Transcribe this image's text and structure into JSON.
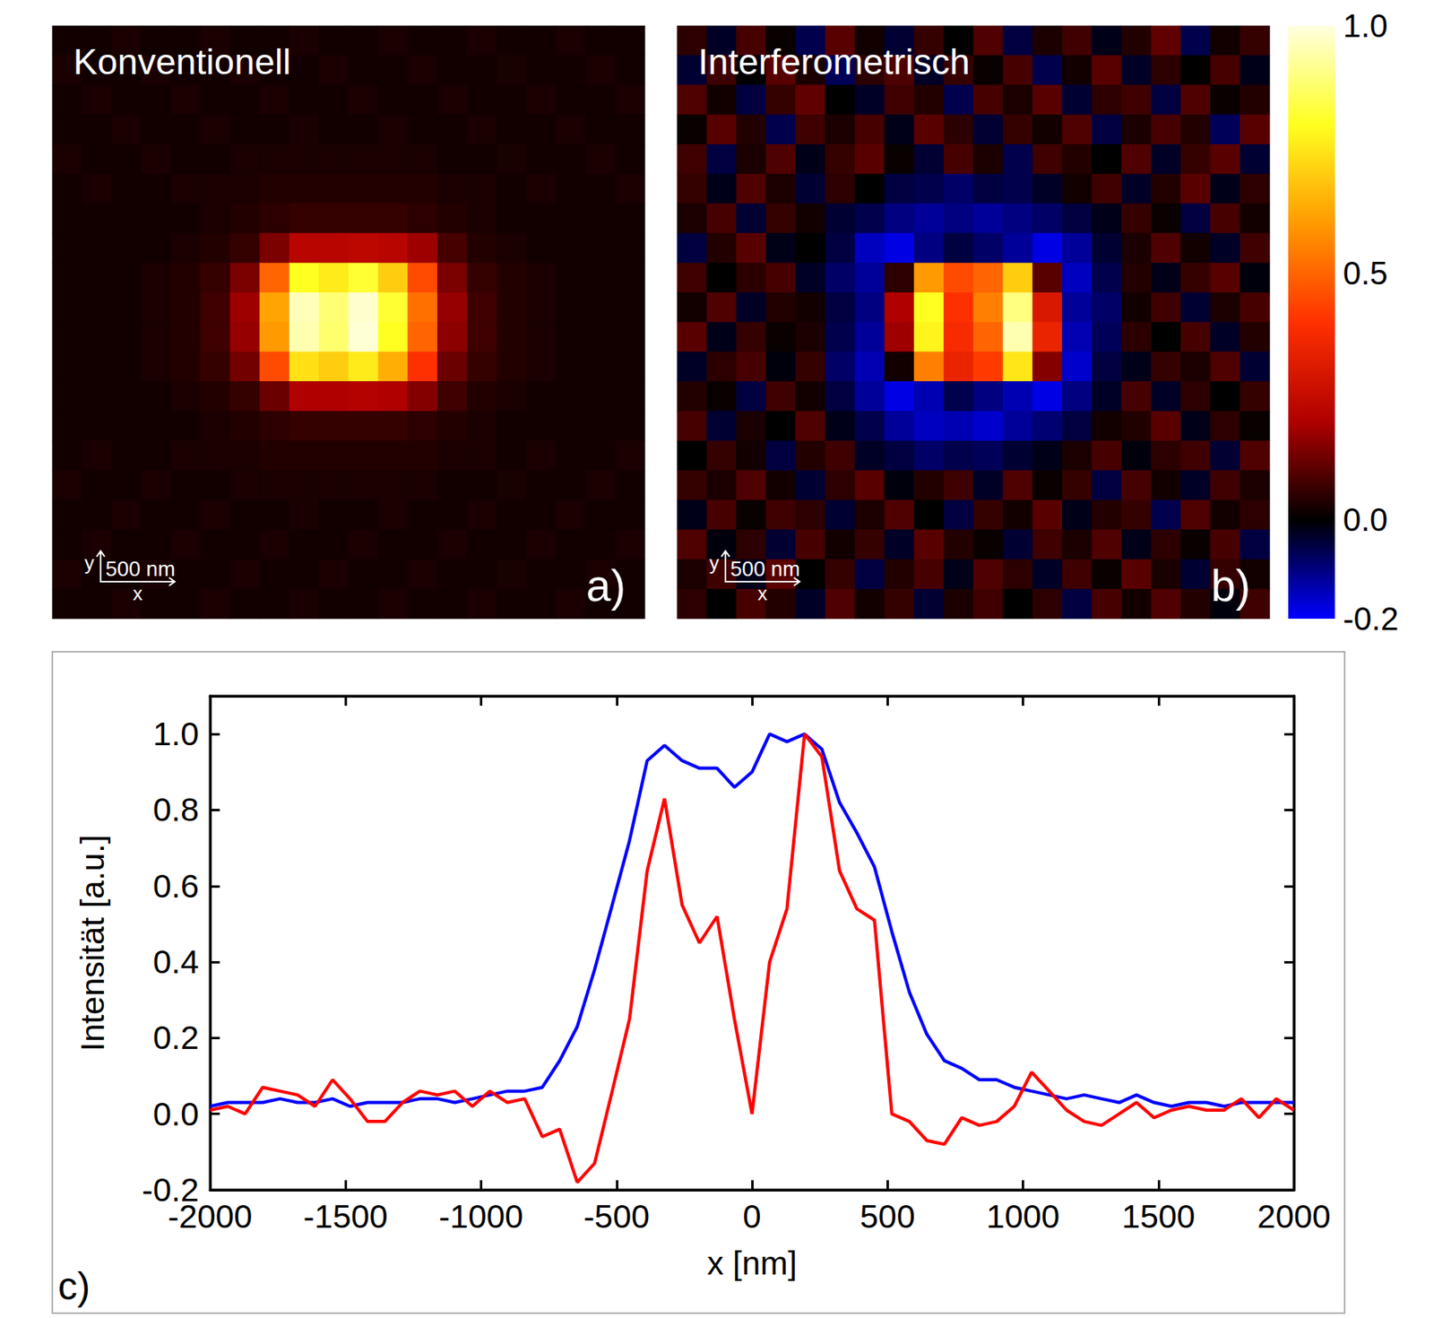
{
  "chart_data": [
    {
      "type": "heatmap",
      "title": "Konventionell",
      "label": "a)",
      "xlabel": "x",
      "ylabel": "y",
      "tick_labels": false,
      "xlim": [
        -2000,
        2000
      ],
      "ylim": [
        -2000,
        2000
      ],
      "scale_bar": {
        "length": 500,
        "label": "500 nm"
      },
      "x": [
        -1900,
        -1700,
        -1500,
        -1300,
        -1100,
        -900,
        -700,
        -500,
        -300,
        -100,
        100,
        300,
        500,
        700,
        900,
        1100,
        1300,
        1500,
        1700,
        1900
      ],
      "y": [
        1900,
        1700,
        1500,
        1300,
        1100,
        900,
        700,
        500,
        300,
        100,
        -100,
        -300,
        -500,
        -700,
        -900,
        -1100,
        -1300,
        -1500,
        -1700,
        -1900
      ],
      "cells": [
        [
          0.02,
          0.02,
          0.03,
          0.02,
          0.02,
          0.03,
          0.02,
          0.02,
          0.03,
          0.02,
          0.02,
          0.03,
          0.02,
          0.02,
          0.03,
          0.02,
          0.02,
          0.03,
          0.02,
          0.02
        ],
        [
          0.03,
          0.02,
          0.02,
          0.03,
          0.02,
          0.02,
          0.03,
          0.02,
          0.02,
          0.03,
          0.02,
          0.02,
          0.03,
          0.02,
          0.02,
          0.03,
          0.02,
          0.02,
          0.03,
          0.02
        ],
        [
          0.02,
          0.03,
          0.02,
          0.02,
          0.03,
          0.02,
          0.02,
          0.03,
          0.02,
          0.02,
          0.03,
          0.02,
          0.02,
          0.03,
          0.02,
          0.02,
          0.03,
          0.02,
          0.02,
          0.03
        ],
        [
          0.02,
          0.02,
          0.03,
          0.02,
          0.02,
          0.03,
          0.02,
          0.02,
          0.03,
          0.02,
          0.02,
          0.03,
          0.02,
          0.02,
          0.03,
          0.02,
          0.02,
          0.03,
          0.02,
          0.02
        ],
        [
          0.03,
          0.02,
          0.02,
          0.03,
          0.02,
          0.02,
          0.03,
          0.03,
          0.03,
          0.03,
          0.03,
          0.03,
          0.03,
          0.02,
          0.02,
          0.03,
          0.02,
          0.02,
          0.03,
          0.02
        ],
        [
          0.02,
          0.03,
          0.02,
          0.02,
          0.03,
          0.03,
          0.03,
          0.04,
          0.04,
          0.04,
          0.04,
          0.04,
          0.04,
          0.03,
          0.03,
          0.02,
          0.03,
          0.02,
          0.02,
          0.03
        ],
        [
          0.02,
          0.02,
          0.02,
          0.02,
          0.02,
          0.03,
          0.04,
          0.05,
          0.06,
          0.06,
          0.06,
          0.06,
          0.05,
          0.04,
          0.03,
          0.02,
          0.02,
          0.02,
          0.02,
          0.02
        ],
        [
          0.02,
          0.02,
          0.02,
          0.02,
          0.03,
          0.04,
          0.06,
          0.14,
          0.22,
          0.22,
          0.23,
          0.22,
          0.18,
          0.08,
          0.04,
          0.03,
          0.02,
          0.02,
          0.02,
          0.02
        ],
        [
          0.02,
          0.02,
          0.02,
          0.03,
          0.04,
          0.06,
          0.14,
          0.5,
          0.8,
          0.76,
          0.82,
          0.7,
          0.45,
          0.14,
          0.06,
          0.04,
          0.03,
          0.02,
          0.02,
          0.02
        ],
        [
          0.02,
          0.02,
          0.02,
          0.03,
          0.04,
          0.07,
          0.18,
          0.62,
          0.96,
          0.89,
          0.98,
          0.82,
          0.52,
          0.17,
          0.07,
          0.04,
          0.03,
          0.02,
          0.02,
          0.02
        ],
        [
          0.02,
          0.02,
          0.02,
          0.03,
          0.04,
          0.07,
          0.17,
          0.6,
          0.95,
          0.88,
          0.99,
          0.8,
          0.5,
          0.16,
          0.07,
          0.04,
          0.03,
          0.02,
          0.02,
          0.02
        ],
        [
          0.02,
          0.02,
          0.02,
          0.03,
          0.04,
          0.06,
          0.13,
          0.45,
          0.74,
          0.7,
          0.76,
          0.64,
          0.4,
          0.12,
          0.06,
          0.04,
          0.03,
          0.02,
          0.02,
          0.02
        ],
        [
          0.02,
          0.02,
          0.02,
          0.02,
          0.03,
          0.04,
          0.06,
          0.12,
          0.2,
          0.2,
          0.21,
          0.2,
          0.15,
          0.07,
          0.04,
          0.03,
          0.02,
          0.02,
          0.02,
          0.02
        ],
        [
          0.02,
          0.02,
          0.02,
          0.02,
          0.02,
          0.03,
          0.04,
          0.05,
          0.06,
          0.06,
          0.06,
          0.06,
          0.05,
          0.04,
          0.03,
          0.02,
          0.02,
          0.02,
          0.02,
          0.02
        ],
        [
          0.02,
          0.03,
          0.02,
          0.02,
          0.03,
          0.03,
          0.03,
          0.04,
          0.04,
          0.04,
          0.04,
          0.04,
          0.04,
          0.03,
          0.03,
          0.02,
          0.03,
          0.02,
          0.02,
          0.03
        ],
        [
          0.03,
          0.02,
          0.02,
          0.03,
          0.02,
          0.02,
          0.03,
          0.03,
          0.03,
          0.03,
          0.03,
          0.03,
          0.03,
          0.02,
          0.02,
          0.03,
          0.02,
          0.02,
          0.03,
          0.02
        ],
        [
          0.02,
          0.02,
          0.03,
          0.02,
          0.02,
          0.03,
          0.02,
          0.02,
          0.03,
          0.02,
          0.02,
          0.03,
          0.02,
          0.02,
          0.03,
          0.02,
          0.02,
          0.03,
          0.02,
          0.02
        ],
        [
          0.02,
          0.03,
          0.02,
          0.02,
          0.03,
          0.02,
          0.02,
          0.03,
          0.02,
          0.02,
          0.03,
          0.02,
          0.02,
          0.03,
          0.02,
          0.02,
          0.03,
          0.02,
          0.02,
          0.03
        ],
        [
          0.03,
          0.02,
          0.02,
          0.03,
          0.02,
          0.02,
          0.03,
          0.02,
          0.02,
          0.03,
          0.02,
          0.02,
          0.03,
          0.02,
          0.02,
          0.03,
          0.02,
          0.02,
          0.03,
          0.02
        ],
        [
          0.02,
          0.02,
          0.03,
          0.02,
          0.02,
          0.03,
          0.02,
          0.02,
          0.03,
          0.02,
          0.02,
          0.03,
          0.02,
          0.02,
          0.03,
          0.02,
          0.02,
          0.03,
          0.02,
          0.02
        ]
      ]
    },
    {
      "type": "heatmap",
      "title": "Interferometrisch",
      "label": "b)",
      "xlabel": "x",
      "ylabel": "y",
      "tick_labels": false,
      "xlim": [
        -2000,
        2000
      ],
      "ylim": [
        -2000,
        2000
      ],
      "scale_bar": {
        "length": 500,
        "label": "500 nm"
      },
      "colorbar": {
        "range": [
          -0.2,
          1.0
        ],
        "ticks": [
          {
            "value": 1,
            "label": "1.0"
          },
          0.5,
          {
            "value": 0,
            "label": "0.0"
          },
          -0.2
        ]
      },
      "x": [
        -1900,
        -1700,
        -1500,
        -1300,
        -1100,
        -900,
        -700,
        -500,
        -300,
        -100,
        100,
        300,
        500,
        700,
        900,
        1100,
        1300,
        1500,
        1700,
        1900
      ],
      "y": [
        1900,
        1700,
        1500,
        1300,
        1100,
        900,
        700,
        500,
        300,
        100,
        -100,
        -300,
        -500,
        -700,
        -900,
        -1100,
        -1300,
        -1500,
        -1700,
        -1900
      ],
      "cells": [
        [
          0.05,
          -0.03,
          0.08,
          0.01,
          -0.06,
          0.1,
          0.02,
          -0.04,
          0.06,
          0.0,
          0.09,
          -0.05,
          0.03,
          0.07,
          -0.02,
          0.04,
          0.11,
          -0.06,
          0.02,
          0.06
        ],
        [
          -0.04,
          0.07,
          0.0,
          0.1,
          0.03,
          -0.07,
          0.05,
          0.09,
          -0.03,
          0.06,
          0.01,
          0.08,
          -0.06,
          0.02,
          0.1,
          -0.03,
          0.05,
          0.0,
          0.08,
          -0.02
        ],
        [
          0.09,
          0.02,
          -0.05,
          0.06,
          0.11,
          0.0,
          -0.03,
          0.07,
          0.04,
          -0.06,
          0.08,
          0.03,
          0.1,
          -0.04,
          0.05,
          0.07,
          -0.05,
          0.09,
          0.01,
          0.04
        ],
        [
          0.01,
          0.1,
          0.04,
          -0.06,
          0.07,
          0.03,
          0.08,
          -0.02,
          0.1,
          0.05,
          -0.04,
          0.06,
          0.02,
          0.09,
          -0.05,
          0.03,
          0.08,
          0.04,
          -0.07,
          0.1
        ],
        [
          0.07,
          -0.05,
          0.03,
          0.09,
          -0.02,
          0.06,
          0.1,
          0.01,
          -0.04,
          0.08,
          0.03,
          -0.06,
          0.07,
          0.04,
          0.0,
          0.09,
          -0.03,
          0.06,
          0.1,
          -0.04
        ],
        [
          0.06,
          -0.02,
          0.09,
          0.03,
          -0.04,
          0.05,
          0.0,
          -0.05,
          -0.06,
          -0.08,
          -0.05,
          -0.06,
          -0.03,
          0.02,
          0.07,
          -0.03,
          0.04,
          0.1,
          -0.02,
          0.05
        ],
        [
          0.03,
          0.08,
          -0.04,
          0.06,
          0.02,
          -0.04,
          -0.06,
          -0.1,
          -0.12,
          -0.1,
          -0.12,
          -0.1,
          -0.08,
          -0.05,
          -0.02,
          0.06,
          0.01,
          -0.05,
          0.08,
          0.02
        ],
        [
          -0.05,
          0.04,
          0.1,
          -0.02,
          0.0,
          -0.05,
          -0.15,
          -0.18,
          -0.1,
          -0.05,
          -0.08,
          -0.12,
          -0.18,
          -0.12,
          -0.04,
          0.03,
          0.09,
          0.02,
          -0.03,
          0.07
        ],
        [
          0.07,
          0.0,
          0.05,
          0.08,
          -0.03,
          -0.08,
          -0.12,
          0.05,
          0.6,
          0.45,
          0.5,
          0.7,
          0.1,
          -0.15,
          -0.06,
          0.04,
          -0.02,
          0.06,
          0.1,
          -0.01
        ],
        [
          0.02,
          0.09,
          -0.03,
          0.04,
          0.02,
          -0.05,
          -0.1,
          0.2,
          0.8,
          0.4,
          0.55,
          0.9,
          0.3,
          -0.12,
          -0.08,
          0.02,
          0.07,
          -0.04,
          0.03,
          0.08
        ],
        [
          0.1,
          -0.02,
          0.06,
          0.01,
          0.03,
          -0.06,
          -0.12,
          0.18,
          0.78,
          0.38,
          0.5,
          0.95,
          0.35,
          -0.14,
          -0.07,
          0.05,
          0.0,
          0.08,
          -0.03,
          0.04
        ],
        [
          -0.03,
          0.05,
          0.08,
          -0.01,
          0.06,
          -0.08,
          -0.14,
          0.02,
          0.55,
          0.35,
          0.42,
          0.75,
          0.15,
          -0.16,
          -0.05,
          -0.02,
          0.06,
          0.03,
          0.09,
          -0.04
        ],
        [
          0.04,
          0.01,
          -0.05,
          0.07,
          0.02,
          -0.05,
          -0.12,
          -0.18,
          -0.14,
          -0.06,
          -0.1,
          -0.14,
          -0.18,
          -0.1,
          -0.03,
          0.08,
          -0.03,
          0.05,
          0.0,
          0.06
        ],
        [
          0.08,
          -0.04,
          0.03,
          0.0,
          0.09,
          -0.02,
          -0.06,
          -0.12,
          -0.15,
          -0.14,
          -0.16,
          -0.12,
          -0.09,
          -0.05,
          0.02,
          0.04,
          0.1,
          -0.02,
          0.05,
          0.01
        ],
        [
          0.0,
          0.06,
          0.02,
          -0.05,
          0.04,
          0.07,
          -0.03,
          -0.05,
          -0.08,
          -0.06,
          -0.07,
          -0.04,
          -0.02,
          0.03,
          0.08,
          -0.01,
          0.05,
          0.07,
          -0.04,
          0.09
        ],
        [
          0.06,
          0.03,
          0.09,
          0.02,
          -0.04,
          0.05,
          0.1,
          -0.01,
          0.04,
          0.07,
          -0.03,
          0.09,
          0.01,
          0.06,
          -0.05,
          0.08,
          0.02,
          -0.03,
          0.07,
          0.03
        ],
        [
          -0.02,
          0.08,
          0.01,
          0.07,
          0.05,
          -0.04,
          0.03,
          0.09,
          0.0,
          -0.05,
          0.06,
          0.02,
          0.1,
          -0.02,
          0.04,
          0.06,
          -0.06,
          0.09,
          0.02,
          0.05
        ],
        [
          0.09,
          -0.01,
          0.05,
          -0.04,
          0.08,
          0.02,
          0.06,
          -0.03,
          0.1,
          0.04,
          0.01,
          -0.04,
          0.07,
          0.03,
          0.09,
          -0.02,
          0.05,
          0.01,
          0.08,
          -0.05
        ],
        [
          0.03,
          0.07,
          -0.02,
          0.1,
          0.0,
          0.06,
          -0.05,
          0.04,
          0.08,
          -0.02,
          0.09,
          0.05,
          -0.03,
          0.07,
          0.01,
          0.1,
          0.03,
          -0.04,
          0.06,
          0.02
        ],
        [
          0.05,
          0.0,
          0.08,
          0.04,
          -0.03,
          0.09,
          0.02,
          0.06,
          -0.04,
          0.03,
          0.07,
          0.0,
          0.05,
          -0.05,
          0.08,
          0.02,
          0.09,
          0.04,
          -0.01,
          0.07
        ]
      ]
    },
    {
      "type": "line",
      "label": "c)",
      "xlabel": "x [nm]",
      "ylabel": "Intensität [a.u.]",
      "grid": false,
      "xlim": [
        -2000,
        2000
      ],
      "xticks": [
        -2000,
        -1500,
        -1000,
        -500,
        0,
        500,
        1000,
        1500,
        2000
      ],
      "ylim": [
        -0.2,
        1.1
      ],
      "yticks": [
        -0.2,
        {
          "value": 0,
          "label": "0.0"
        },
        0.2,
        0.4,
        0.6,
        0.8,
        {
          "value": 1,
          "label": "1.0"
        }
      ],
      "x": [
        -2000,
        -1935,
        -1871,
        -1806,
        -1742,
        -1677,
        -1613,
        -1548,
        -1484,
        -1419,
        -1355,
        -1290,
        -1226,
        -1161,
        -1097,
        -1032,
        -968,
        -903,
        -839,
        -774,
        -710,
        -645,
        -581,
        -516,
        -452,
        -387,
        -323,
        -258,
        -194,
        -129,
        -65,
        0,
        65,
        129,
        194,
        258,
        323,
        387,
        452,
        516,
        581,
        645,
        710,
        774,
        839,
        903,
        968,
        1032,
        1097,
        1161,
        1226,
        1290,
        1355,
        1419,
        1484,
        1548,
        1613,
        1677,
        1742,
        1806,
        1871,
        1935,
        2000
      ],
      "series": [
        {
          "color": "#0000ff",
          "values": [
            0.02,
            0.03,
            0.03,
            0.03,
            0.04,
            0.03,
            0.03,
            0.04,
            0.02,
            0.03,
            0.03,
            0.03,
            0.04,
            0.04,
            0.03,
            0.04,
            0.05,
            0.06,
            0.06,
            0.07,
            0.14,
            0.23,
            0.38,
            0.55,
            0.72,
            0.93,
            0.97,
            0.93,
            0.91,
            0.91,
            0.86,
            0.9,
            1.0,
            0.98,
            1.0,
            0.96,
            0.82,
            0.74,
            0.65,
            0.48,
            0.32,
            0.21,
            0.14,
            0.12,
            0.09,
            0.09,
            0.07,
            0.06,
            0.05,
            0.04,
            0.05,
            0.04,
            0.03,
            0.05,
            0.03,
            0.02,
            0.03,
            0.03,
            0.02,
            0.03,
            0.03,
            0.03,
            0.03
          ]
        },
        {
          "color": "#ff0000",
          "values": [
            0.01,
            0.02,
            0.0,
            0.07,
            0.06,
            0.05,
            0.02,
            0.09,
            0.04,
            -0.02,
            -0.02,
            0.03,
            0.06,
            0.05,
            0.06,
            0.02,
            0.06,
            0.03,
            0.04,
            -0.06,
            -0.04,
            -0.18,
            -0.13,
            0.06,
            0.25,
            0.64,
            0.83,
            0.55,
            0.45,
            0.52,
            0.25,
            0.0,
            0.4,
            0.54,
            1.0,
            0.94,
            0.64,
            0.54,
            0.51,
            0.0,
            -0.02,
            -0.07,
            -0.08,
            -0.01,
            -0.03,
            -0.02,
            0.02,
            0.11,
            0.06,
            0.01,
            -0.02,
            -0.03,
            0.0,
            0.03,
            -0.01,
            0.01,
            0.02,
            0.01,
            0.01,
            0.04,
            -0.01,
            0.04,
            0.01
          ]
        }
      ]
    }
  ]
}
